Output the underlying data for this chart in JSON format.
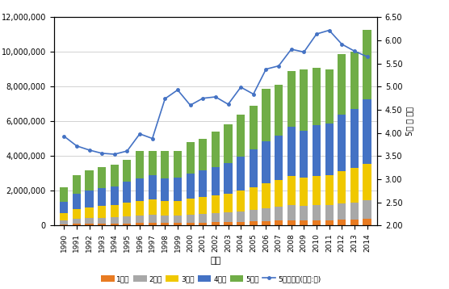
{
  "years": [
    1990,
    1991,
    1992,
    1993,
    1994,
    1995,
    1996,
    1997,
    1998,
    1999,
    2000,
    2001,
    2002,
    2003,
    2004,
    2005,
    2006,
    2007,
    2008,
    2009,
    2010,
    2011,
    2012,
    2013,
    2014
  ],
  "q1": [
    60000,
    85000,
    95000,
    100000,
    105000,
    125000,
    135000,
    145000,
    135000,
    145000,
    155000,
    165000,
    175000,
    185000,
    205000,
    230000,
    255000,
    270000,
    300000,
    290000,
    300000,
    305000,
    330000,
    350000,
    385000
  ],
  "q2": [
    220000,
    300000,
    330000,
    350000,
    360000,
    405000,
    435000,
    455000,
    425000,
    435000,
    465000,
    490000,
    520000,
    555000,
    610000,
    670000,
    735000,
    790000,
    855000,
    830000,
    860000,
    870000,
    935000,
    985000,
    1060000
  ],
  "q3": [
    430000,
    570000,
    630000,
    660000,
    690000,
    775000,
    840000,
    890000,
    825000,
    835000,
    910000,
    965000,
    1020000,
    1090000,
    1200000,
    1320000,
    1450000,
    1560000,
    1680000,
    1630000,
    1700000,
    1730000,
    1870000,
    1960000,
    2120000
  ],
  "q4": [
    660000,
    880000,
    970000,
    1020000,
    1080000,
    1215000,
    1315000,
    1395000,
    1305000,
    1335000,
    1455000,
    1555000,
    1655000,
    1780000,
    1960000,
    2180000,
    2400000,
    2580000,
    2840000,
    2720000,
    2930000,
    2975000,
    3245000,
    3430000,
    3730000
  ],
  "q5": [
    830000,
    1085000,
    1175000,
    1220000,
    1265000,
    1280000,
    1575000,
    1415000,
    1610000,
    1550000,
    1815000,
    1831000,
    2030000,
    2200000,
    2425000,
    2500000,
    3060000,
    2900000,
    3225000,
    3530000,
    3310000,
    3120000,
    3520000,
    3275000,
    4005000
  ],
  "ratio": [
    3.93,
    3.72,
    3.63,
    3.56,
    3.54,
    3.61,
    3.98,
    3.88,
    4.74,
    4.93,
    4.6,
    4.75,
    4.78,
    4.62,
    4.99,
    4.84,
    5.38,
    5.45,
    5.81,
    5.75,
    6.14,
    6.22,
    5.92,
    5.77,
    5.65
  ],
  "bar_colors": [
    "#E87B22",
    "#A8A8A8",
    "#F0C800",
    "#4472C4",
    "#70AD47"
  ],
  "line_color": "#4472C4",
  "ylim_left": [
    0,
    12000000
  ],
  "ylim_right": [
    2.0,
    6.5
  ],
  "yticks_left": [
    0,
    2000000,
    4000000,
    6000000,
    8000000,
    10000000,
    12000000
  ],
  "yticks_right": [
    2.0,
    2.5,
    3.0,
    3.5,
    4.0,
    4.5,
    5.0,
    5.5,
    6.0,
    6.5
  ],
  "xlabel": "연도",
  "ylabel_right": "5위 분 배율",
  "legend_labels": [
    "1분위",
    "2분위",
    "3분위",
    "4분위",
    "5분위",
    "5분위배율(단위:배)"
  ],
  "bg_color": "#FFFFFF",
  "grid_color": "#C0C0C0",
  "figsize": [
    5.56,
    3.58
  ],
  "dpi": 100
}
